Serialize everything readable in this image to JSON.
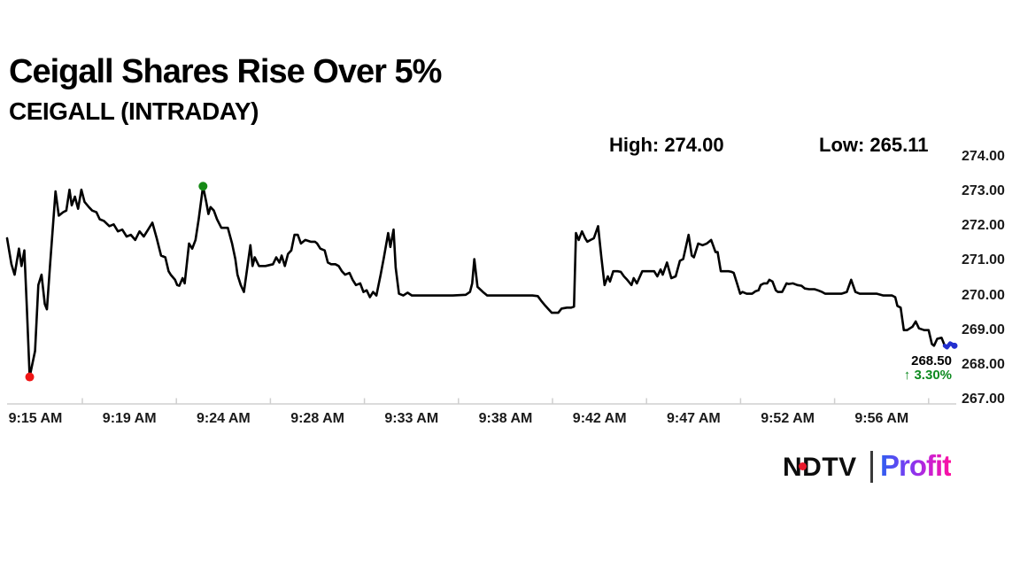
{
  "header": {
    "title": "Ceigall Shares Rise Over 5%",
    "subtitle": "CEIGALL (INTRADAY)",
    "high_text": "High: 274.00",
    "low_text": "Low: 265.11"
  },
  "annotation": {
    "last_price": "268.50",
    "change": "↑ 3.30%",
    "change_color": "#0e8a20"
  },
  "logo": {
    "ndtv": "NDTV",
    "profit": "Profit",
    "dot_color": "#e8192c",
    "separator_color": "#3a3a3a"
  },
  "chart_data": {
    "type": "line",
    "title": "CEIGALL (INTRADAY)",
    "high": 274.0,
    "low": 265.11,
    "last_price": 268.5,
    "change_pct": 3.3,
    "line_color": "#000000",
    "axis_color": "#cfcfcf",
    "grid": false,
    "legend": false,
    "x_axis": {
      "labels": [
        "9:15 AM",
        "9:19 AM",
        "9:24 AM",
        "9:28 AM",
        "9:33 AM",
        "9:38 AM",
        "9:42 AM",
        "9:47 AM",
        "9:52 AM",
        "9:56 AM"
      ],
      "range_minutes_from_915": [
        0,
        44
      ]
    },
    "y_axis": {
      "labels": [
        "274.00",
        "273.00",
        "272.00",
        "271.00",
        "270.00",
        "269.00",
        "268.00",
        "267.00"
      ],
      "min": 267.0,
      "max": 274.0,
      "position": "right"
    },
    "markers": {
      "low": {
        "t": 1.05,
        "v": 267.65,
        "color": "#f01616"
      },
      "high": {
        "t": 9.1,
        "v": 273.15,
        "color": "#168a16"
      },
      "end": {
        "t": 44.0,
        "v": 268.55,
        "color": "#2430cf"
      }
    },
    "series": [
      {
        "name": "CEIGALL",
        "points": [
          [
            0,
            271.65
          ],
          [
            0.2,
            270.9
          ],
          [
            0.35,
            270.6
          ],
          [
            0.55,
            271.35
          ],
          [
            0.67,
            270.85
          ],
          [
            0.8,
            271.3
          ],
          [
            0.92,
            269.6
          ],
          [
            1.05,
            267.65
          ],
          [
            1.3,
            268.4
          ],
          [
            1.45,
            270.3
          ],
          [
            1.6,
            270.6
          ],
          [
            1.75,
            269.75
          ],
          [
            1.85,
            269.6
          ],
          [
            2.0,
            270.9
          ],
          [
            2.25,
            273.0
          ],
          [
            2.4,
            272.3
          ],
          [
            2.6,
            272.4
          ],
          [
            2.75,
            272.45
          ],
          [
            2.9,
            273.05
          ],
          [
            3.0,
            272.6
          ],
          [
            3.15,
            272.85
          ],
          [
            3.3,
            272.5
          ],
          [
            3.45,
            273.05
          ],
          [
            3.6,
            272.7
          ],
          [
            3.8,
            272.55
          ],
          [
            3.95,
            272.45
          ],
          [
            4.15,
            272.4
          ],
          [
            4.3,
            272.2
          ],
          [
            4.5,
            272.15
          ],
          [
            4.75,
            272.0
          ],
          [
            4.95,
            272.05
          ],
          [
            5.15,
            271.85
          ],
          [
            5.35,
            271.9
          ],
          [
            5.55,
            271.7
          ],
          [
            5.75,
            271.75
          ],
          [
            5.95,
            271.6
          ],
          [
            6.15,
            271.85
          ],
          [
            6.35,
            271.7
          ],
          [
            6.55,
            271.9
          ],
          [
            6.75,
            272.1
          ],
          [
            6.95,
            271.65
          ],
          [
            7.15,
            271.15
          ],
          [
            7.35,
            271.1
          ],
          [
            7.5,
            270.7
          ],
          [
            7.6,
            270.6
          ],
          [
            7.8,
            270.45
          ],
          [
            7.9,
            270.3
          ],
          [
            8.0,
            270.28
          ],
          [
            8.15,
            270.5
          ],
          [
            8.25,
            270.35
          ],
          [
            8.45,
            271.5
          ],
          [
            8.6,
            271.35
          ],
          [
            8.75,
            271.6
          ],
          [
            8.9,
            272.2
          ],
          [
            9.1,
            273.15
          ],
          [
            9.25,
            272.7
          ],
          [
            9.35,
            272.35
          ],
          [
            9.45,
            272.55
          ],
          [
            9.6,
            272.45
          ],
          [
            9.75,
            272.2
          ],
          [
            9.95,
            271.95
          ],
          [
            10.25,
            271.95
          ],
          [
            10.45,
            271.5
          ],
          [
            10.6,
            271.05
          ],
          [
            10.7,
            270.6
          ],
          [
            10.85,
            270.3
          ],
          [
            11.0,
            270.1
          ],
          [
            11.3,
            271.45
          ],
          [
            11.4,
            270.85
          ],
          [
            11.5,
            271.1
          ],
          [
            11.7,
            270.85
          ],
          [
            12.0,
            270.85
          ],
          [
            12.35,
            270.9
          ],
          [
            12.5,
            271.1
          ],
          [
            12.65,
            270.95
          ],
          [
            12.75,
            271.15
          ],
          [
            12.9,
            270.85
          ],
          [
            13.05,
            271.2
          ],
          [
            13.2,
            271.3
          ],
          [
            13.35,
            271.75
          ],
          [
            13.5,
            271.75
          ],
          [
            13.65,
            271.5
          ],
          [
            13.85,
            271.6
          ],
          [
            14.1,
            271.55
          ],
          [
            14.3,
            271.55
          ],
          [
            14.4,
            271.5
          ],
          [
            14.55,
            271.35
          ],
          [
            14.75,
            271.3
          ],
          [
            14.9,
            270.95
          ],
          [
            15.05,
            270.9
          ],
          [
            15.25,
            270.9
          ],
          [
            15.4,
            270.85
          ],
          [
            15.55,
            270.7
          ],
          [
            15.7,
            270.6
          ],
          [
            15.9,
            270.65
          ],
          [
            16.05,
            270.45
          ],
          [
            16.2,
            270.3
          ],
          [
            16.4,
            270.35
          ],
          [
            16.55,
            270.1
          ],
          [
            16.7,
            270.15
          ],
          [
            16.85,
            269.95
          ],
          [
            17.0,
            270.1
          ],
          [
            17.15,
            270.0
          ],
          [
            17.35,
            270.6
          ],
          [
            17.5,
            271.1
          ],
          [
            17.7,
            271.8
          ],
          [
            17.8,
            271.4
          ],
          [
            17.95,
            271.9
          ],
          [
            18.05,
            270.8
          ],
          [
            18.2,
            270.05
          ],
          [
            18.4,
            270.0
          ],
          [
            18.6,
            270.08
          ],
          [
            18.8,
            270.0
          ],
          [
            19.4,
            270.0
          ],
          [
            20.0,
            270.0
          ],
          [
            20.7,
            270.0
          ],
          [
            21.3,
            270.02
          ],
          [
            21.5,
            270.1
          ],
          [
            21.6,
            270.35
          ],
          [
            21.7,
            271.05
          ],
          [
            21.85,
            270.25
          ],
          [
            22.1,
            270.1
          ],
          [
            22.3,
            270.0
          ],
          [
            23.0,
            270.0
          ],
          [
            23.7,
            270.0
          ],
          [
            24.4,
            270.0
          ],
          [
            24.65,
            269.98
          ],
          [
            24.8,
            269.85
          ],
          [
            25.0,
            269.7
          ],
          [
            25.15,
            269.6
          ],
          [
            25.3,
            269.5
          ],
          [
            25.6,
            269.5
          ],
          [
            25.75,
            269.62
          ],
          [
            26.0,
            269.65
          ],
          [
            26.2,
            269.65
          ],
          [
            26.33,
            269.68
          ],
          [
            26.42,
            271.8
          ],
          [
            26.55,
            271.6
          ],
          [
            26.7,
            271.85
          ],
          [
            26.85,
            271.65
          ],
          [
            26.95,
            271.55
          ],
          [
            27.1,
            271.6
          ],
          [
            27.25,
            271.65
          ],
          [
            27.45,
            272.0
          ],
          [
            27.6,
            271.1
          ],
          [
            27.75,
            270.3
          ],
          [
            27.9,
            270.55
          ],
          [
            28.0,
            270.4
          ],
          [
            28.15,
            270.7
          ],
          [
            28.35,
            270.7
          ],
          [
            28.5,
            270.68
          ],
          [
            28.65,
            270.55
          ],
          [
            28.8,
            270.45
          ],
          [
            29.0,
            270.3
          ],
          [
            29.1,
            270.5
          ],
          [
            29.25,
            270.35
          ],
          [
            29.5,
            270.7
          ],
          [
            29.75,
            270.7
          ],
          [
            30.05,
            270.7
          ],
          [
            30.2,
            270.55
          ],
          [
            30.35,
            270.75
          ],
          [
            30.45,
            270.6
          ],
          [
            30.65,
            270.95
          ],
          [
            30.85,
            270.5
          ],
          [
            31.05,
            270.55
          ],
          [
            31.25,
            271.0
          ],
          [
            31.4,
            271.05
          ],
          [
            31.65,
            271.75
          ],
          [
            31.8,
            271.15
          ],
          [
            31.9,
            271.1
          ],
          [
            32.1,
            271.5
          ],
          [
            32.3,
            271.45
          ],
          [
            32.5,
            271.5
          ],
          [
            32.6,
            271.55
          ],
          [
            32.7,
            271.6
          ],
          [
            32.9,
            271.25
          ],
          [
            33.0,
            271.25
          ],
          [
            33.15,
            270.7
          ],
          [
            33.3,
            270.7
          ],
          [
            33.5,
            270.7
          ],
          [
            33.65,
            270.68
          ],
          [
            33.75,
            270.65
          ],
          [
            33.9,
            270.35
          ],
          [
            34.05,
            270.05
          ],
          [
            34.15,
            270.1
          ],
          [
            34.35,
            270.05
          ],
          [
            34.6,
            270.05
          ],
          [
            34.75,
            270.12
          ],
          [
            34.9,
            270.15
          ],
          [
            35.0,
            270.3
          ],
          [
            35.15,
            270.35
          ],
          [
            35.3,
            270.35
          ],
          [
            35.4,
            270.45
          ],
          [
            35.55,
            270.4
          ],
          [
            35.7,
            270.15
          ],
          [
            35.8,
            270.1
          ],
          [
            36.0,
            270.1
          ],
          [
            36.2,
            270.35
          ],
          [
            36.3,
            270.33
          ],
          [
            36.5,
            270.35
          ],
          [
            36.7,
            270.3
          ],
          [
            36.9,
            270.28
          ],
          [
            37.05,
            270.2
          ],
          [
            37.25,
            270.18
          ],
          [
            37.5,
            270.18
          ],
          [
            37.65,
            270.15
          ],
          [
            37.85,
            270.1
          ],
          [
            38.0,
            270.05
          ],
          [
            38.35,
            270.05
          ],
          [
            38.75,
            270.05
          ],
          [
            39.0,
            270.1
          ],
          [
            39.2,
            270.45
          ],
          [
            39.4,
            270.1
          ],
          [
            39.6,
            270.05
          ],
          [
            40.0,
            270.05
          ],
          [
            40.4,
            270.05
          ],
          [
            40.7,
            270.0
          ],
          [
            40.9,
            270.0
          ],
          [
            41.1,
            270.0
          ],
          [
            41.25,
            269.95
          ],
          [
            41.35,
            269.7
          ],
          [
            41.5,
            269.65
          ],
          [
            41.65,
            269.0
          ],
          [
            41.8,
            269.0
          ],
          [
            42.05,
            269.1
          ],
          [
            42.2,
            269.25
          ],
          [
            42.35,
            269.05
          ],
          [
            42.6,
            269.0
          ],
          [
            42.8,
            269.0
          ],
          [
            42.95,
            268.6
          ],
          [
            43.05,
            268.55
          ],
          [
            43.2,
            268.75
          ],
          [
            43.4,
            268.78
          ],
          [
            43.55,
            268.55
          ],
          [
            43.65,
            268.5
          ],
          [
            43.8,
            268.62
          ],
          [
            44.0,
            268.55
          ]
        ]
      }
    ]
  }
}
